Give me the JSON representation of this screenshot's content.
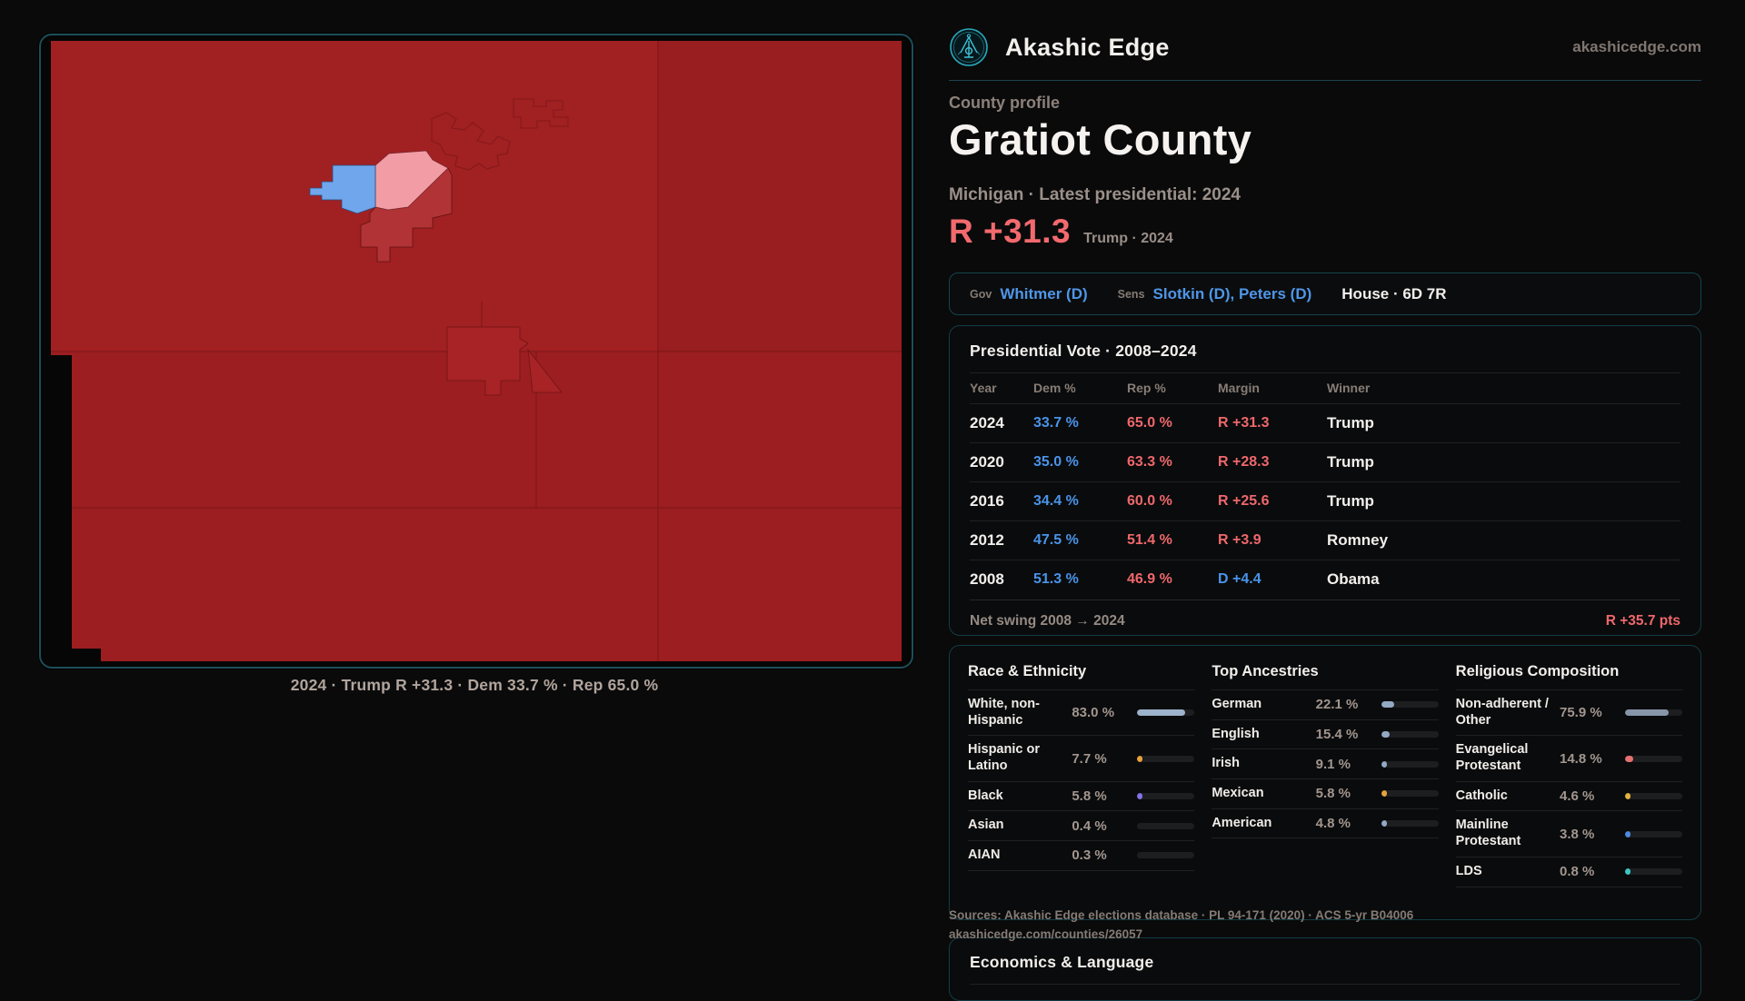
{
  "site": {
    "name": "Akashic Edge",
    "domain": "akashicedge.com",
    "logo_icon": "akashic-edge-emblem"
  },
  "page": {
    "eyebrow": "County profile",
    "title": "Gratiot County",
    "subtitle": "Michigan · Latest presidential: 2024",
    "margin_value": "R +31.3",
    "margin_context": "Trump · 2024"
  },
  "officials": {
    "gov_label": "Gov",
    "gov": "Whitmer (D)",
    "sens_label": "Sens",
    "sens": "Slotkin (D), Peters (D)",
    "house": "House · 6D 7R"
  },
  "vote_table": {
    "title": "Presidential Vote · 2008–2024",
    "columns": [
      "Year",
      "Dem %",
      "Rep %",
      "Margin",
      "Winner"
    ],
    "rows": [
      {
        "year": "2024",
        "dem": "33.7 %",
        "rep": "65.0 %",
        "margin": "R +31.3",
        "margin_party": "R",
        "winner": "Trump"
      },
      {
        "year": "2020",
        "dem": "35.0 %",
        "rep": "63.3 %",
        "margin": "R +28.3",
        "margin_party": "R",
        "winner": "Trump"
      },
      {
        "year": "2016",
        "dem": "34.4 %",
        "rep": "60.0 %",
        "margin": "R +25.6",
        "margin_party": "R",
        "winner": "Trump"
      },
      {
        "year": "2012",
        "dem": "47.5 %",
        "rep": "51.4 %",
        "margin": "R +3.9",
        "margin_party": "R",
        "winner": "Romney"
      },
      {
        "year": "2008",
        "dem": "51.3 %",
        "rep": "46.9 %",
        "margin": "D +4.4",
        "margin_party": "D",
        "winner": "Obama"
      }
    ],
    "net_swing_label": "Net swing 2008 → 2024",
    "net_swing_value": "R +35.7 pts"
  },
  "demographics": {
    "sections": [
      {
        "id": "race",
        "title": "Race & Ethnicity",
        "rows": [
          {
            "label": "White, non-Hispanic",
            "value": "83.0 %",
            "pct": 83.0,
            "color": "#9db2cb"
          },
          {
            "label": "Hispanic or Latino",
            "value": "7.7 %",
            "pct": 7.7,
            "color": "#e8a23c"
          },
          {
            "label": "Black",
            "value": "5.8 %",
            "pct": 5.8,
            "color": "#8571e8"
          },
          {
            "label": "Asian",
            "value": "0.4 %",
            "pct": 0.4,
            "color": null
          },
          {
            "label": "AIAN",
            "value": "0.3 %",
            "pct": 0.3,
            "color": null
          }
        ]
      },
      {
        "id": "ancestries",
        "title": "Top Ancestries",
        "rows": [
          {
            "label": "German",
            "value": "22.1 %",
            "pct": 22.1,
            "color": "#93a9c4"
          },
          {
            "label": "English",
            "value": "15.4 %",
            "pct": 15.4,
            "color": "#93a9c4"
          },
          {
            "label": "Irish",
            "value": "9.1 %",
            "pct": 9.1,
            "color": "#93a9c4"
          },
          {
            "label": "Mexican",
            "value": "5.8 %",
            "pct": 5.8,
            "color": "#e8a23c"
          },
          {
            "label": "American",
            "value": "4.8 %",
            "pct": 4.8,
            "color": "#93a9c4"
          }
        ]
      },
      {
        "id": "religion",
        "title": "Religious Composition",
        "rows": [
          {
            "label": "Non-adherent / Other",
            "value": "75.9 %",
            "pct": 75.9,
            "color": "#8795a8"
          },
          {
            "label": "Evangelical Protestant",
            "value": "14.8 %",
            "pct": 14.8,
            "color": "#e4716f"
          },
          {
            "label": "Catholic",
            "value": "4.6 %",
            "pct": 4.6,
            "color": "#e3b33c"
          },
          {
            "label": "Mainline Protestant",
            "value": "3.8 %",
            "pct": 3.8,
            "color": "#4f87e0"
          },
          {
            "label": "LDS",
            "value": "0.8 %",
            "pct": 0.8,
            "color": "#3cc8c4"
          }
        ]
      }
    ]
  },
  "sources": {
    "line1": "Sources: Akashic Edge elections database · PL 94-171 (2020) · ACS 5-yr B04006",
    "line2": "akashicedge.com/counties/26057"
  },
  "next_section": {
    "title": "Economics & Language"
  },
  "map": {
    "caption": "2024 · Trump R +31.3 · Dem 33.7 % · Rep 65.0 %",
    "colors": {
      "base_red": "#9C1E20",
      "block_red_light": "#A12022",
      "block_red_dark": "#961D1E",
      "city_red": "#B23335",
      "city_pink": "#F29DA5",
      "city_blue": "#6FA6EC",
      "frame_teal": "#1c4f58"
    }
  },
  "accent": {
    "teal": "#2aa9bd",
    "dem_blue": "#4a94ea",
    "rep_red": "#ee686c"
  }
}
